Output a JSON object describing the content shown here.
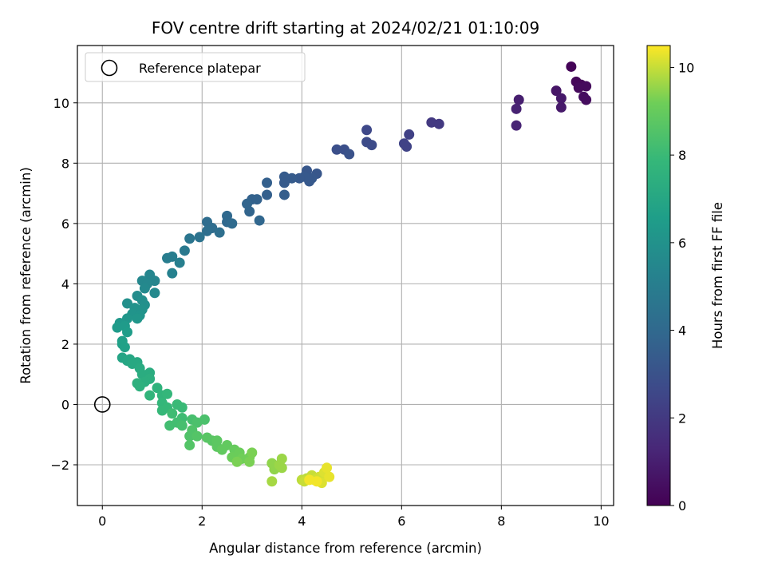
{
  "chart_data": {
    "type": "scatter",
    "title": "FOV centre drift starting at 2024/02/21 01:10:09",
    "xlabel": "Angular distance from reference (arcmin)",
    "ylabel": "Rotation from reference (arcmin)",
    "xlim": [
      -0.5,
      10.25
    ],
    "ylim": [
      -3.35,
      11.9
    ],
    "xticks": [
      0,
      2,
      4,
      6,
      8,
      10
    ],
    "yticks": [
      -2,
      0,
      2,
      4,
      6,
      8,
      10
    ],
    "grid": true,
    "legend": {
      "placement": "top-left",
      "entries": [
        "Reference platepar"
      ]
    },
    "reference_point": {
      "x": 0,
      "y": 0
    },
    "colorbar": {
      "label": "Hours from first FF file",
      "colormap": "viridis",
      "range": [
        0,
        10.5
      ],
      "ticks": [
        0,
        2,
        4,
        6,
        8,
        10
      ]
    },
    "points": [
      {
        "x": 9.4,
        "y": 11.2,
        "c": 0.1
      },
      {
        "x": 9.5,
        "y": 10.7,
        "c": 0.2
      },
      {
        "x": 9.6,
        "y": 10.6,
        "c": 0.2
      },
      {
        "x": 9.7,
        "y": 10.55,
        "c": 0.3
      },
      {
        "x": 9.55,
        "y": 10.5,
        "c": 0.3
      },
      {
        "x": 9.65,
        "y": 10.2,
        "c": 0.4
      },
      {
        "x": 9.7,
        "y": 10.1,
        "c": 0.4
      },
      {
        "x": 9.1,
        "y": 10.4,
        "c": 0.7
      },
      {
        "x": 9.2,
        "y": 10.15,
        "c": 0.8
      },
      {
        "x": 9.2,
        "y": 9.85,
        "c": 0.8
      },
      {
        "x": 8.35,
        "y": 10.1,
        "c": 1.0
      },
      {
        "x": 8.3,
        "y": 9.8,
        "c": 1.1
      },
      {
        "x": 8.3,
        "y": 9.25,
        "c": 1.2
      },
      {
        "x": 6.6,
        "y": 9.35,
        "c": 2.0
      },
      {
        "x": 6.75,
        "y": 9.3,
        "c": 2.0
      },
      {
        "x": 6.15,
        "y": 8.95,
        "c": 2.3
      },
      {
        "x": 6.05,
        "y": 8.65,
        "c": 2.4
      },
      {
        "x": 6.1,
        "y": 8.55,
        "c": 2.4
      },
      {
        "x": 5.3,
        "y": 9.1,
        "c": 2.6
      },
      {
        "x": 5.3,
        "y": 8.7,
        "c": 2.7
      },
      {
        "x": 5.4,
        "y": 8.6,
        "c": 2.7
      },
      {
        "x": 4.7,
        "y": 8.45,
        "c": 2.9
      },
      {
        "x": 4.85,
        "y": 8.45,
        "c": 2.9
      },
      {
        "x": 4.95,
        "y": 8.3,
        "c": 3.0
      },
      {
        "x": 4.1,
        "y": 7.75,
        "c": 3.2
      },
      {
        "x": 4.3,
        "y": 7.65,
        "c": 3.2
      },
      {
        "x": 4.2,
        "y": 7.5,
        "c": 3.3
      },
      {
        "x": 4.05,
        "y": 7.55,
        "c": 3.3
      },
      {
        "x": 3.95,
        "y": 7.5,
        "c": 3.3
      },
      {
        "x": 3.8,
        "y": 7.5,
        "c": 3.4
      },
      {
        "x": 3.65,
        "y": 7.55,
        "c": 3.4
      },
      {
        "x": 3.65,
        "y": 7.35,
        "c": 3.4
      },
      {
        "x": 4.15,
        "y": 7.4,
        "c": 3.3
      },
      {
        "x": 3.65,
        "y": 6.95,
        "c": 3.5
      },
      {
        "x": 3.3,
        "y": 7.35,
        "c": 3.6
      },
      {
        "x": 3.3,
        "y": 6.95,
        "c": 3.6
      },
      {
        "x": 3.0,
        "y": 6.8,
        "c": 3.7
      },
      {
        "x": 3.1,
        "y": 6.8,
        "c": 3.7
      },
      {
        "x": 2.9,
        "y": 6.65,
        "c": 3.8
      },
      {
        "x": 2.95,
        "y": 6.4,
        "c": 3.8
      },
      {
        "x": 3.15,
        "y": 6.1,
        "c": 3.9
      },
      {
        "x": 2.5,
        "y": 6.25,
        "c": 4.0
      },
      {
        "x": 2.5,
        "y": 6.05,
        "c": 4.0
      },
      {
        "x": 2.6,
        "y": 6.0,
        "c": 4.1
      },
      {
        "x": 2.1,
        "y": 6.05,
        "c": 4.2
      },
      {
        "x": 2.2,
        "y": 5.85,
        "c": 4.2
      },
      {
        "x": 2.1,
        "y": 5.75,
        "c": 4.3
      },
      {
        "x": 2.35,
        "y": 5.7,
        "c": 4.3
      },
      {
        "x": 1.95,
        "y": 5.55,
        "c": 4.5
      },
      {
        "x": 1.75,
        "y": 5.5,
        "c": 4.6
      },
      {
        "x": 1.65,
        "y": 5.1,
        "c": 4.8
      },
      {
        "x": 1.3,
        "y": 4.85,
        "c": 5.0
      },
      {
        "x": 1.4,
        "y": 4.9,
        "c": 5.0
      },
      {
        "x": 1.55,
        "y": 4.7,
        "c": 5.1
      },
      {
        "x": 1.4,
        "y": 4.35,
        "c": 5.2
      },
      {
        "x": 0.95,
        "y": 4.3,
        "c": 5.4
      },
      {
        "x": 1.05,
        "y": 4.1,
        "c": 5.4
      },
      {
        "x": 0.8,
        "y": 4.1,
        "c": 5.5
      },
      {
        "x": 0.9,
        "y": 4.0,
        "c": 5.5
      },
      {
        "x": 0.85,
        "y": 3.85,
        "c": 5.6
      },
      {
        "x": 1.05,
        "y": 3.7,
        "c": 5.6
      },
      {
        "x": 0.7,
        "y": 3.6,
        "c": 5.7
      },
      {
        "x": 0.8,
        "y": 3.45,
        "c": 5.8
      },
      {
        "x": 0.5,
        "y": 3.35,
        "c": 5.9
      },
      {
        "x": 0.85,
        "y": 3.3,
        "c": 5.9
      },
      {
        "x": 0.65,
        "y": 3.2,
        "c": 6.0
      },
      {
        "x": 0.8,
        "y": 3.15,
        "c": 6.0
      },
      {
        "x": 0.6,
        "y": 3.0,
        "c": 6.1
      },
      {
        "x": 0.75,
        "y": 2.95,
        "c": 6.1
      },
      {
        "x": 0.7,
        "y": 2.85,
        "c": 6.2
      },
      {
        "x": 0.5,
        "y": 2.85,
        "c": 6.2
      },
      {
        "x": 0.35,
        "y": 2.7,
        "c": 6.3
      },
      {
        "x": 0.45,
        "y": 2.6,
        "c": 6.4
      },
      {
        "x": 0.3,
        "y": 2.55,
        "c": 6.4
      },
      {
        "x": 0.5,
        "y": 2.4,
        "c": 6.5
      },
      {
        "x": 0.4,
        "y": 2.1,
        "c": 6.6
      },
      {
        "x": 0.4,
        "y": 2.0,
        "c": 6.7
      },
      {
        "x": 0.45,
        "y": 1.9,
        "c": 6.7
      },
      {
        "x": 0.4,
        "y": 1.55,
        "c": 6.9
      },
      {
        "x": 0.5,
        "y": 1.45,
        "c": 7.0
      },
      {
        "x": 0.55,
        "y": 1.5,
        "c": 7.0
      },
      {
        "x": 0.6,
        "y": 1.35,
        "c": 7.1
      },
      {
        "x": 0.7,
        "y": 1.4,
        "c": 7.1
      },
      {
        "x": 0.75,
        "y": 1.2,
        "c": 7.2
      },
      {
        "x": 0.8,
        "y": 1.0,
        "c": 7.3
      },
      {
        "x": 0.95,
        "y": 1.05,
        "c": 7.3
      },
      {
        "x": 0.95,
        "y": 0.85,
        "c": 7.4
      },
      {
        "x": 0.85,
        "y": 0.75,
        "c": 7.4
      },
      {
        "x": 0.7,
        "y": 0.7,
        "c": 7.5
      },
      {
        "x": 0.75,
        "y": 0.6,
        "c": 7.5
      },
      {
        "x": 1.1,
        "y": 0.55,
        "c": 7.6
      },
      {
        "x": 0.95,
        "y": 0.3,
        "c": 7.7
      },
      {
        "x": 1.2,
        "y": 0.3,
        "c": 7.7
      },
      {
        "x": 1.3,
        "y": 0.35,
        "c": 7.8
      },
      {
        "x": 1.2,
        "y": 0.05,
        "c": 7.8
      },
      {
        "x": 1.3,
        "y": -0.1,
        "c": 7.9
      },
      {
        "x": 1.2,
        "y": -0.2,
        "c": 7.9
      },
      {
        "x": 1.5,
        "y": 0.0,
        "c": 8.0
      },
      {
        "x": 1.6,
        "y": -0.1,
        "c": 8.0
      },
      {
        "x": 1.4,
        "y": -0.3,
        "c": 8.1
      },
      {
        "x": 1.6,
        "y": -0.45,
        "c": 8.1
      },
      {
        "x": 1.35,
        "y": -0.7,
        "c": 8.2
      },
      {
        "x": 1.5,
        "y": -0.6,
        "c": 8.2
      },
      {
        "x": 1.6,
        "y": -0.7,
        "c": 8.3
      },
      {
        "x": 1.8,
        "y": -0.5,
        "c": 8.3
      },
      {
        "x": 1.9,
        "y": -0.6,
        "c": 8.4
      },
      {
        "x": 2.05,
        "y": -0.5,
        "c": 8.4
      },
      {
        "x": 1.8,
        "y": -0.85,
        "c": 8.5
      },
      {
        "x": 1.75,
        "y": -1.05,
        "c": 8.5
      },
      {
        "x": 1.75,
        "y": -1.35,
        "c": 8.6
      },
      {
        "x": 1.9,
        "y": -1.05,
        "c": 8.6
      },
      {
        "x": 2.1,
        "y": -1.1,
        "c": 8.7
      },
      {
        "x": 2.2,
        "y": -1.2,
        "c": 8.7
      },
      {
        "x": 2.3,
        "y": -1.2,
        "c": 8.8
      },
      {
        "x": 2.3,
        "y": -1.4,
        "c": 8.8
      },
      {
        "x": 2.4,
        "y": -1.5,
        "c": 8.9
      },
      {
        "x": 2.5,
        "y": -1.35,
        "c": 8.9
      },
      {
        "x": 2.65,
        "y": -1.5,
        "c": 9.0
      },
      {
        "x": 2.6,
        "y": -1.75,
        "c": 9.1
      },
      {
        "x": 2.75,
        "y": -1.6,
        "c": 9.1
      },
      {
        "x": 2.8,
        "y": -1.8,
        "c": 9.2
      },
      {
        "x": 2.95,
        "y": -1.75,
        "c": 9.2
      },
      {
        "x": 2.7,
        "y": -1.9,
        "c": 9.3
      },
      {
        "x": 2.95,
        "y": -1.9,
        "c": 9.3
      },
      {
        "x": 3.0,
        "y": -1.6,
        "c": 9.3
      },
      {
        "x": 3.4,
        "y": -1.95,
        "c": 9.5
      },
      {
        "x": 3.45,
        "y": -2.15,
        "c": 9.5
      },
      {
        "x": 3.55,
        "y": -2.0,
        "c": 9.6
      },
      {
        "x": 3.6,
        "y": -2.1,
        "c": 9.6
      },
      {
        "x": 3.6,
        "y": -1.8,
        "c": 9.6
      },
      {
        "x": 3.4,
        "y": -2.55,
        "c": 9.7
      },
      {
        "x": 4.0,
        "y": -2.5,
        "c": 9.9
      },
      {
        "x": 4.1,
        "y": -2.45,
        "c": 9.9
      },
      {
        "x": 4.05,
        "y": -2.55,
        "c": 10.0
      },
      {
        "x": 4.2,
        "y": -2.35,
        "c": 10.0
      },
      {
        "x": 4.25,
        "y": -2.5,
        "c": 10.1
      },
      {
        "x": 4.35,
        "y": -2.4,
        "c": 10.1
      },
      {
        "x": 4.4,
        "y": -2.6,
        "c": 10.2
      },
      {
        "x": 4.45,
        "y": -2.25,
        "c": 10.2
      },
      {
        "x": 4.5,
        "y": -2.1,
        "c": 10.3
      },
      {
        "x": 4.55,
        "y": -2.4,
        "c": 10.3
      },
      {
        "x": 4.3,
        "y": -2.55,
        "c": 10.4
      },
      {
        "x": 4.15,
        "y": -2.5,
        "c": 10.4
      }
    ]
  }
}
